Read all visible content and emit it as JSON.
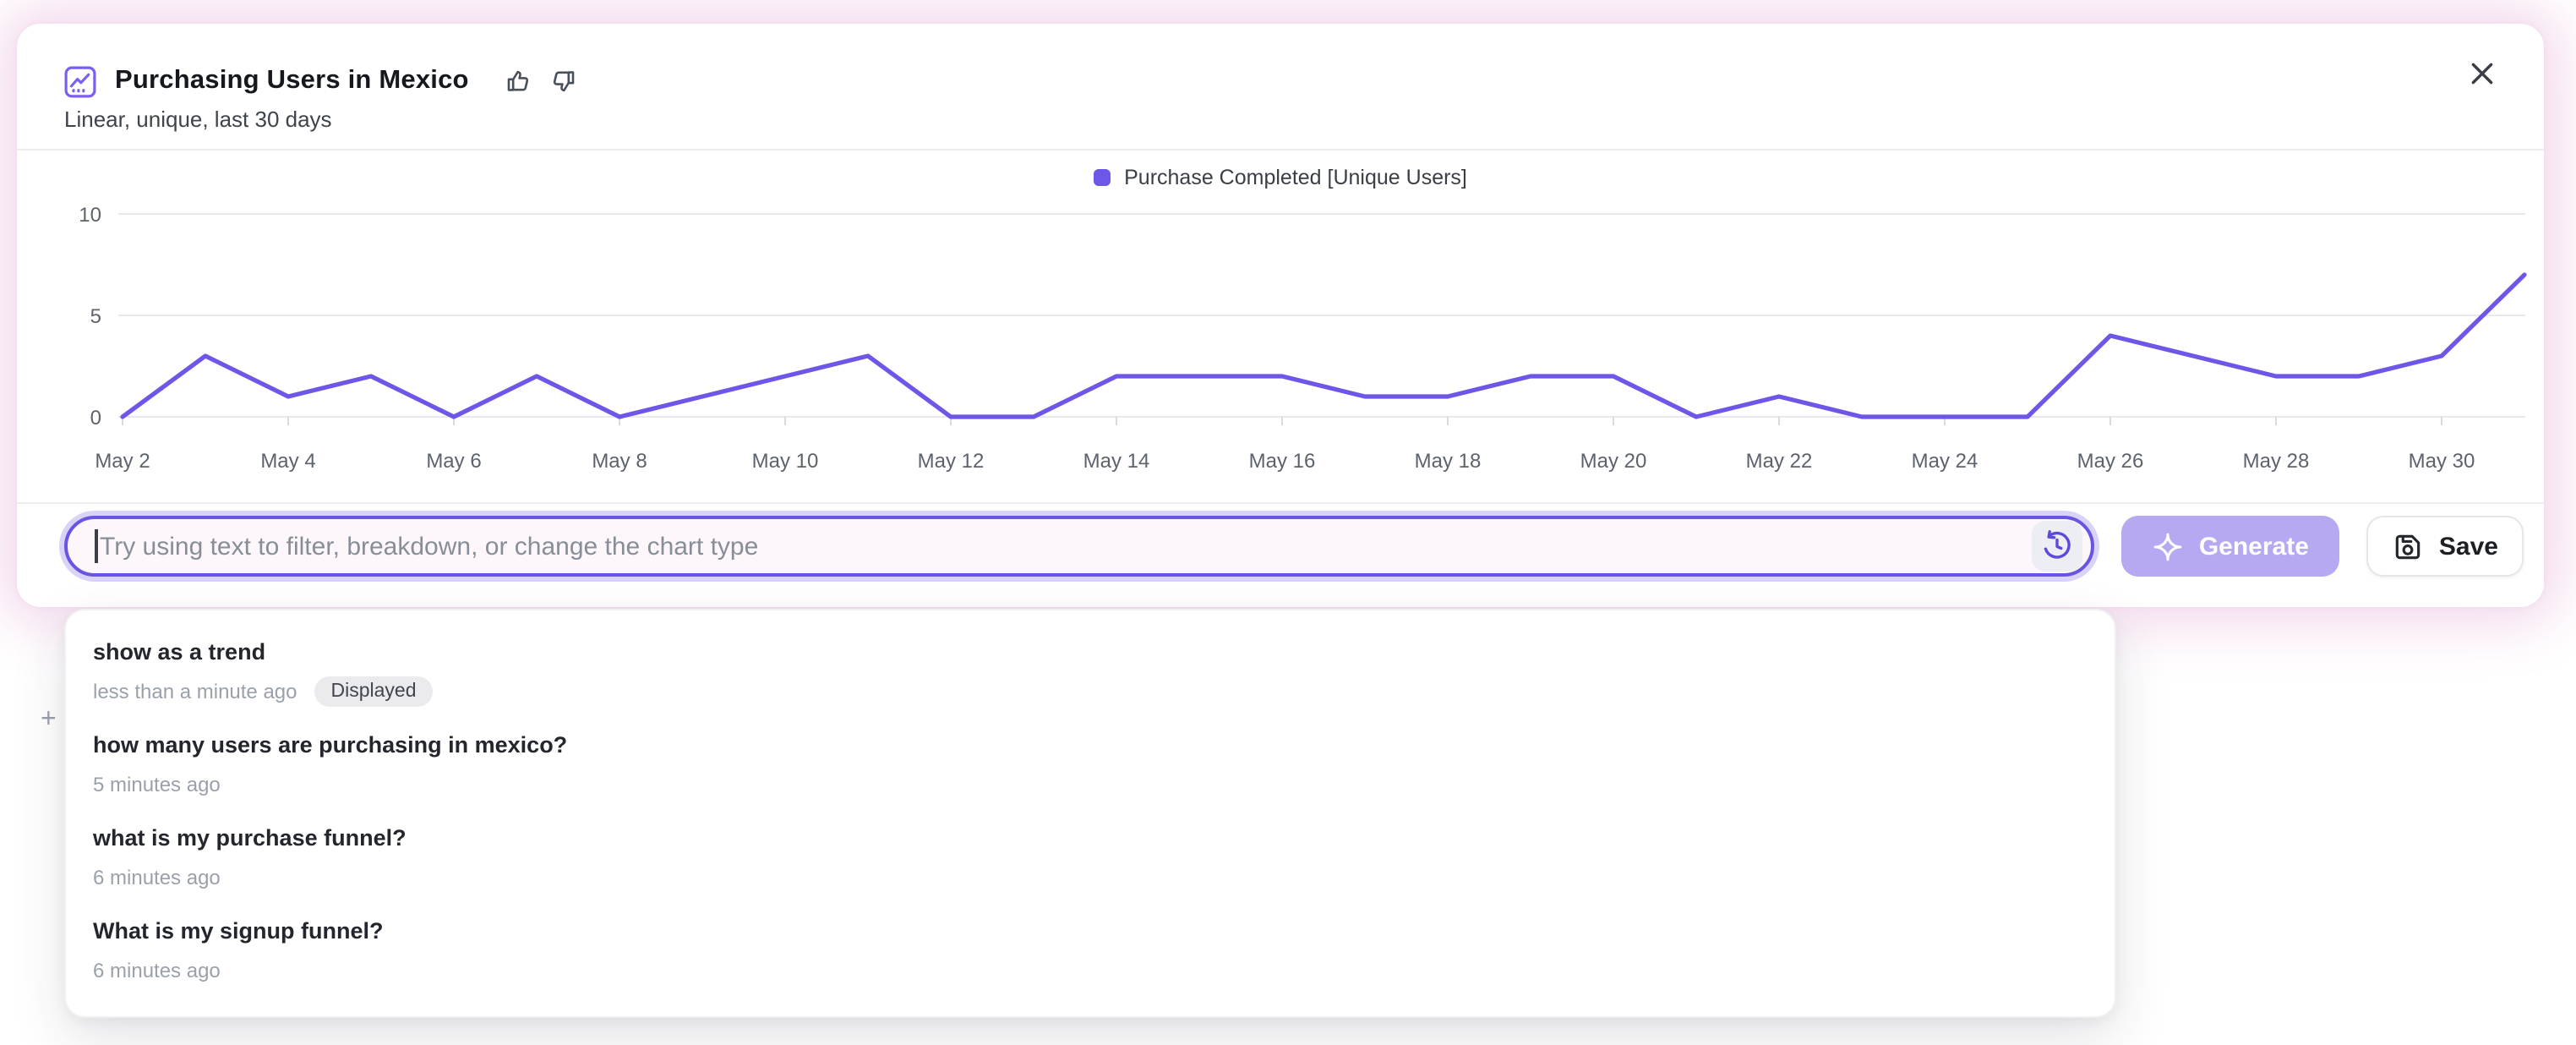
{
  "header": {
    "title": "Purchasing Users in Mexico",
    "subtitle": "Linear, unique, last 30 days"
  },
  "legend": {
    "label": "Purchase Completed [Unique Users]"
  },
  "chart_data": {
    "type": "line",
    "title": "Purchasing Users in Mexico",
    "series_name": "Purchase Completed [Unique Users]",
    "x": [
      "May 2",
      "May 3",
      "May 4",
      "May 5",
      "May 6",
      "May 7",
      "May 8",
      "May 9",
      "May 10",
      "May 11",
      "May 12",
      "May 13",
      "May 14",
      "May 15",
      "May 16",
      "May 17",
      "May 18",
      "May 19",
      "May 20",
      "May 21",
      "May 22",
      "May 23",
      "May 24",
      "May 25",
      "May 26",
      "May 27",
      "May 28",
      "May 29",
      "May 30",
      "May 31"
    ],
    "values": [
      0,
      3,
      1,
      2,
      0,
      2,
      0,
      1,
      2,
      3,
      0,
      0,
      2,
      2,
      2,
      1,
      1,
      2,
      2,
      0,
      1,
      0,
      0,
      0,
      4,
      3,
      2,
      2,
      3,
      7
    ],
    "yticks": [
      0,
      5,
      10
    ],
    "ylim": [
      0,
      10
    ],
    "xtick_labels": [
      "May 2",
      "May 4",
      "May 6",
      "May 8",
      "May 10",
      "May 12",
      "May 14",
      "May 16",
      "May 18",
      "May 20",
      "May 22",
      "May 24",
      "May 26",
      "May 28",
      "May 30"
    ],
    "grid": true,
    "legend_position": "top-center",
    "line_color": "#6d57e8"
  },
  "footer": {
    "input_placeholder": "Try using text to filter, breakdown, or change the chart type",
    "generate_label": "Generate",
    "save_label": "Save"
  },
  "history": {
    "items": [
      {
        "query": "show as a trend",
        "time": "less than a minute ago",
        "badge": "Displayed"
      },
      {
        "query": "how many users are purchasing in mexico?",
        "time": "5 minutes ago",
        "badge": ""
      },
      {
        "query": "what is my purchase funnel?",
        "time": "6 minutes ago",
        "badge": ""
      },
      {
        "query": "What is my signup funnel?",
        "time": "6 minutes ago",
        "badge": ""
      }
    ]
  },
  "page": {
    "plus_glyph": "+"
  },
  "colors": {
    "accent": "#6d57e8",
    "generate_bg": "#b7a9f1",
    "input_border": "#6856e3",
    "input_ring": "#d9d3f8",
    "input_bg": "#fdf6fb",
    "glow": "#f2d8ec",
    "badge_bg": "#ebebee",
    "axis_text": "#5d636c",
    "grid_line": "#e7e9ee"
  }
}
